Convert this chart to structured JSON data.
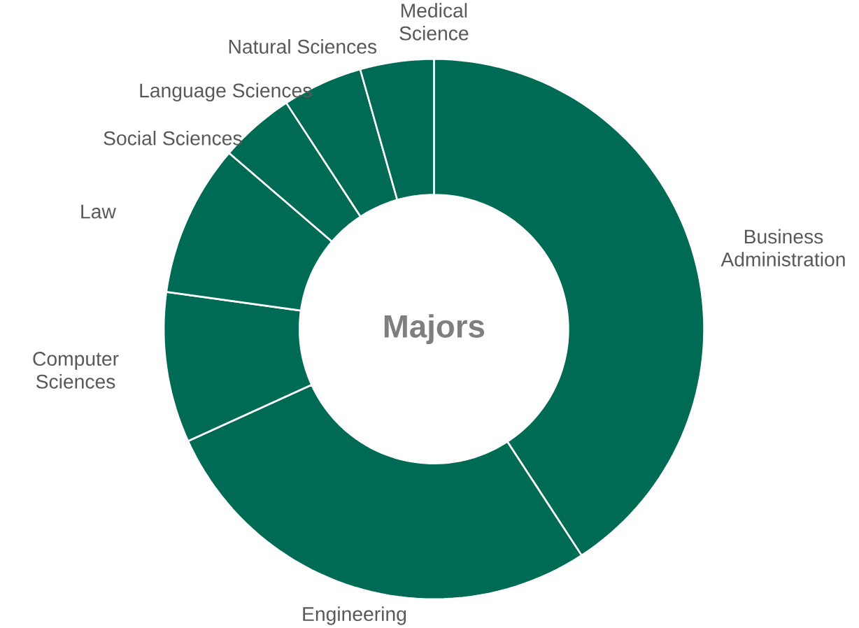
{
  "chart_data": {
    "type": "donut",
    "title": "Majors",
    "categories": [
      "Business Administration",
      "Engineering",
      "Computer Sciences",
      "Law",
      "Social Sciences",
      "Language Sciences",
      "Natural Sciences",
      "Medical Science"
    ],
    "values": [
      40.8,
      27.4,
      9.0,
      9.1,
      4.5,
      4.8,
      4.4,
      0
    ],
    "colors": [
      "#006b54",
      "#006b54",
      "#006b54",
      "#006b54",
      "#006b54",
      "#006b54",
      "#006b54",
      "#006b54"
    ]
  }
}
